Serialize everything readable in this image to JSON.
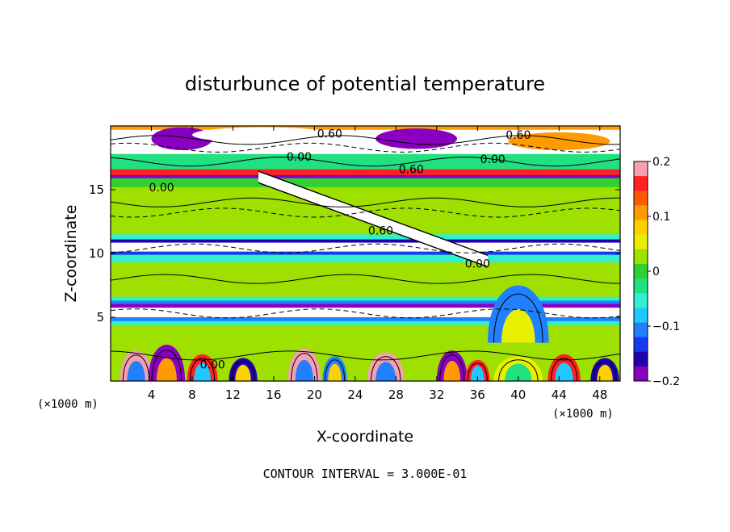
{
  "chart_data": {
    "type": "heatmap",
    "title": "disturbunce of potential temperature",
    "xlabel": "X-coordinate",
    "ylabel": "Z-coordinate",
    "x_unit_left": "(×1000 m)",
    "x_unit_right": "(×1000 m)",
    "xlim": [
      0,
      50
    ],
    "ylim": [
      0,
      20
    ],
    "xticks": [
      4,
      8,
      12,
      16,
      20,
      24,
      28,
      32,
      36,
      40,
      44,
      48
    ],
    "xtick_labels": [
      "4",
      "8",
      "12",
      "16",
      "20",
      "24",
      "28",
      "32",
      "36",
      "40",
      "44",
      "48"
    ],
    "yticks": [
      5,
      10,
      15
    ],
    "ytick_labels": [
      "5",
      "10",
      "15"
    ],
    "colorbar": {
      "range": [
        -0.2,
        0.2
      ],
      "ticks": [
        0.2,
        0.1,
        0,
        -0.1,
        -0.2
      ],
      "tick_labels": [
        "0.2",
        "0.1",
        "0",
        "−0.1",
        "−0.2"
      ],
      "colors": [
        "#f4a0b0",
        "#ff2020",
        "#ff5a00",
        "#ff9a00",
        "#ffd000",
        "#e8f000",
        "#9ee000",
        "#30d030",
        "#20e080",
        "#30f0d0",
        "#20c8ff",
        "#2080ff",
        "#1838f0",
        "#2000b0",
        "#8a00c0"
      ]
    },
    "bands": [
      {
        "z0": 19.7,
        "z1": 20.0,
        "value": 0.12
      },
      {
        "z0": 17.8,
        "z1": 19.7,
        "value": 0.0
      },
      {
        "z0": 16.6,
        "z1": 17.8,
        "value": -0.02
      },
      {
        "z0": 16.15,
        "z1": 16.6,
        "value": 0.15
      },
      {
        "z0": 15.9,
        "z1": 16.15,
        "value": -0.2
      },
      {
        "z0": 15.2,
        "z1": 15.9,
        "value": 0.01
      },
      {
        "z0": 12.6,
        "z1": 15.2,
        "value": 0.03
      },
      {
        "z0": 11.5,
        "z1": 12.6,
        "value": 0.015
      },
      {
        "z0": 11.1,
        "z1": 11.5,
        "value": -0.05
      },
      {
        "z0": 10.85,
        "z1": 11.1,
        "value": -0.15
      },
      {
        "z0": 10.15,
        "z1": 10.85,
        "value": 0.0
      },
      {
        "z0": 9.9,
        "z1": 10.15,
        "value": -0.14
      },
      {
        "z0": 9.3,
        "z1": 9.9,
        "value": -0.05
      },
      {
        "z0": 8.9,
        "z1": 9.3,
        "value": 0.015
      },
      {
        "z0": 7.2,
        "z1": 8.9,
        "value": 0.03
      },
      {
        "z0": 6.6,
        "z1": 7.2,
        "value": 0.015
      },
      {
        "z0": 6.3,
        "z1": 6.6,
        "value": -0.04
      },
      {
        "z0": 6.05,
        "z1": 6.3,
        "value": -0.12
      },
      {
        "z0": 5.75,
        "z1": 6.05,
        "value": -0.2
      },
      {
        "z0": 5.0,
        "z1": 5.75,
        "value": 0.0
      },
      {
        "z0": 4.7,
        "z1": 5.0,
        "value": -0.12
      },
      {
        "z0": 4.4,
        "z1": 4.7,
        "value": -0.04
      },
      {
        "z0": 0.0,
        "z1": 4.4,
        "value": 0.02
      }
    ],
    "features": [
      {
        "type": "plume",
        "x": 2.5,
        "z": 0.0,
        "w": 1.6,
        "h": 3.2,
        "value": 0.2
      },
      {
        "type": "plume",
        "x": 5.5,
        "z": 0.0,
        "w": 1.8,
        "h": 3.8,
        "value": -0.2
      },
      {
        "type": "plume",
        "x": 9.0,
        "z": 0.0,
        "w": 1.5,
        "h": 2.8,
        "value": 0.15
      },
      {
        "type": "plume",
        "x": 13.0,
        "z": 0.0,
        "w": 1.4,
        "h": 2.4,
        "value": -0.15
      },
      {
        "type": "plume",
        "x": 19.0,
        "z": 0.0,
        "w": 1.6,
        "h": 3.4,
        "value": 0.2
      },
      {
        "type": "plume",
        "x": 22.0,
        "z": 0.0,
        "w": 1.2,
        "h": 2.6,
        "value": -0.12
      },
      {
        "type": "plume",
        "x": 27.0,
        "z": 0.0,
        "w": 1.8,
        "h": 3.0,
        "value": 0.18
      },
      {
        "type": "plume",
        "x": 33.5,
        "z": 0.0,
        "w": 1.5,
        "h": 3.2,
        "value": -0.2
      },
      {
        "type": "plume",
        "x": 36.0,
        "z": 0.0,
        "w": 1.2,
        "h": 2.2,
        "value": 0.15
      },
      {
        "type": "plume",
        "x": 40.0,
        "z": 0.0,
        "w": 2.4,
        "h": 2.6,
        "value": 0.06
      },
      {
        "type": "plume",
        "x": 44.5,
        "z": 0.0,
        "w": 1.6,
        "h": 2.8,
        "value": 0.15
      },
      {
        "type": "plume",
        "x": 48.5,
        "z": 0.0,
        "w": 1.4,
        "h": 2.4,
        "value": -0.15
      },
      {
        "type": "plume",
        "x": 40.0,
        "z": 3.0,
        "w": 3.0,
        "h": 6.0,
        "value": -0.1
      },
      {
        "type": "blob",
        "x": 7.0,
        "z": 19.0,
        "w": 3.0,
        "h": 0.9,
        "value": -0.2
      },
      {
        "type": "blob",
        "x": 15.0,
        "z": 19.3,
        "w": 7.0,
        "h": 0.6,
        "value": 0.0
      },
      {
        "type": "blob",
        "x": 30.0,
        "z": 19.0,
        "w": 4.0,
        "h": 0.8,
        "value": -0.18
      },
      {
        "type": "blob",
        "x": 44.0,
        "z": 18.8,
        "w": 5.0,
        "h": 0.7,
        "value": 0.12
      }
    ],
    "slant_band": {
      "x0": 14.5,
      "z0": 16.0,
      "x1": 37.0,
      "z1": 9.4,
      "half_width": 0.45,
      "value": 0.0
    },
    "contour_labels": [
      {
        "x": 21.5,
        "z": 19.4,
        "text": "0.60"
      },
      {
        "x": 40.0,
        "z": 19.3,
        "text": "0.60"
      },
      {
        "x": 18.5,
        "z": 17.6,
        "text": "0.00"
      },
      {
        "x": 37.5,
        "z": 17.4,
        "text": "0.00"
      },
      {
        "x": 29.5,
        "z": 16.6,
        "text": "0.60"
      },
      {
        "x": 5.0,
        "z": 15.2,
        "text": "0.00"
      },
      {
        "x": 26.5,
        "z": 11.8,
        "text": "0.60"
      },
      {
        "x": 36.0,
        "z": 9.2,
        "text": "0.00"
      },
      {
        "x": 10.0,
        "z": 1.3,
        "text": "0.00"
      }
    ],
    "annotation": "CONTOUR INTERVAL = 3.000E-01"
  }
}
